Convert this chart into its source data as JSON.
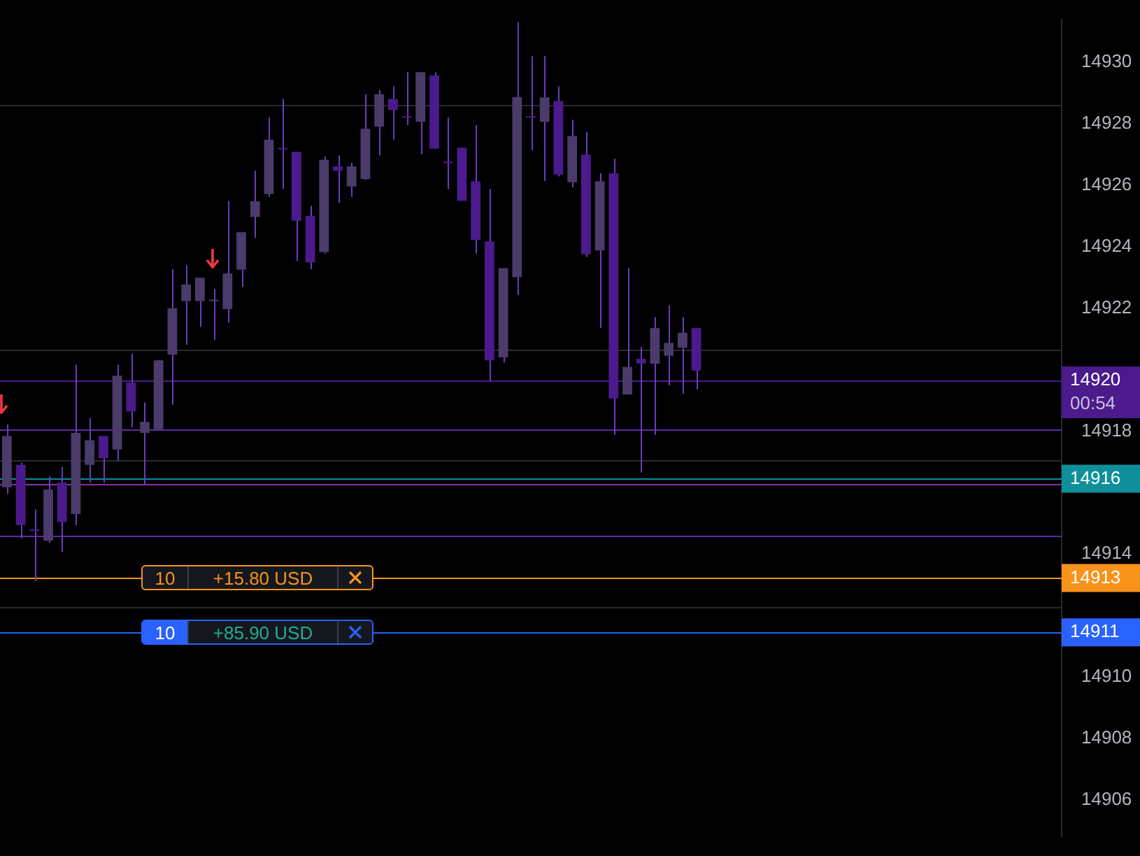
{
  "chart_data": {
    "type": "candlestick",
    "categories": [
      null,
      null,
      null,
      null,
      null,
      null,
      null,
      null,
      null,
      null,
      null,
      null,
      null,
      null,
      null,
      null,
      null,
      null,
      null,
      null,
      null,
      null,
      null,
      null,
      null,
      null,
      null,
      null,
      null,
      null,
      null,
      null,
      null,
      null,
      null,
      null,
      null,
      null,
      null,
      null,
      null,
      null,
      null,
      null,
      null,
      null,
      null,
      null,
      null,
      null,
      null,
      null,
      null,
      null,
      null,
      null,
      null,
      null,
      null,
      null,
      null,
      null,
      null,
      null,
      null,
      null,
      null,
      null,
      null,
      null,
      null,
      null,
      null,
      null,
      null,
      null,
      null
    ],
    "ohlc": [
      [
        14916.17,
        14918.22,
        14915.96,
        14917.84
      ],
      [
        14916.9,
        14916.97,
        14914.51,
        14914.94
      ],
      [
        14914.8,
        14915.45,
        14913.13,
        14914.75
      ],
      [
        14914.43,
        14916.53,
        14914.36,
        14916.1
      ],
      [
        14916.32,
        14916.83,
        14914.07,
        14915.04
      ],
      [
        14915.3,
        14920.16,
        14914.94,
        14917.94
      ],
      [
        14916.9,
        14918.42,
        14916.32,
        14917.7
      ],
      [
        14917.84,
        14917.84,
        14916.32,
        14917.12
      ],
      [
        14917.4,
        14920.16,
        14917.04,
        14919.8
      ],
      [
        14919.58,
        14920.52,
        14918.13,
        14918.64
      ],
      [
        14917.94,
        14918.93,
        14916.25,
        14918.3
      ],
      [
        14918.06,
        14920.3,
        14918.06,
        14920.3
      ],
      [
        14920.49,
        14923.27,
        14918.86,
        14922.0
      ],
      [
        14922.23,
        14923.39,
        14920.81,
        14922.77
      ],
      [
        14922.23,
        14922.99,
        14921.39,
        14922.99
      ],
      [
        14922.23,
        14922.62,
        14920.96,
        14922.25
      ],
      [
        14921.97,
        14925.48,
        14921.53,
        14923.13
      ],
      [
        14923.25,
        14924.47,
        14922.7,
        14924.47
      ],
      [
        14924.97,
        14926.47,
        14924.29,
        14925.48
      ],
      [
        14925.71,
        14928.2,
        14925.62,
        14927.48
      ],
      [
        14927.19,
        14928.81,
        14925.88,
        14927.17
      ],
      [
        14927.09,
        14927.09,
        14923.53,
        14924.84
      ],
      [
        14925.0,
        14925.33,
        14923.27,
        14923.49
      ],
      [
        14923.83,
        14926.93,
        14923.78,
        14926.83
      ],
      [
        14926.61,
        14926.97,
        14925.42,
        14926.47
      ],
      [
        14925.96,
        14926.73,
        14925.62,
        14926.61
      ],
      [
        14926.2,
        14928.96,
        14926.17,
        14927.84
      ],
      [
        14927.91,
        14929.1,
        14926.97,
        14928.96
      ],
      [
        14928.81,
        14929.22,
        14927.48,
        14928.45
      ],
      [
        14928.21,
        14929.68,
        14927.96,
        14928.2
      ],
      [
        14928.06,
        14929.68,
        14927.01,
        14929.68
      ],
      [
        14929.57,
        14929.68,
        14927.19,
        14927.19
      ],
      [
        14926.73,
        14928.2,
        14925.88,
        14926.72
      ],
      [
        14927.22,
        14927.22,
        14925.49,
        14925.49
      ],
      [
        14926.13,
        14927.96,
        14923.78,
        14924.22
      ],
      [
        14924.17,
        14925.88,
        14919.62,
        14920.3
      ],
      [
        14920.4,
        14923.3,
        14920.23,
        14923.3
      ],
      [
        14923.01,
        14931.3,
        14922.43,
        14928.87
      ],
      [
        14928.21,
        14930.2,
        14927.14,
        14928.2
      ],
      [
        14928.06,
        14930.2,
        14926.14,
        14928.86
      ],
      [
        14928.74,
        14929.22,
        14926.29,
        14926.35
      ],
      [
        14926.1,
        14928.13,
        14925.93,
        14927.6
      ],
      [
        14927.0,
        14927.74,
        14923.67,
        14923.75
      ],
      [
        14923.88,
        14926.39,
        14921.36,
        14926.13
      ],
      [
        14926.39,
        14926.87,
        14917.88,
        14919.06
      ],
      [
        14919.19,
        14923.3,
        14919.19,
        14920.09
      ],
      [
        14920.35,
        14920.74,
        14916.65,
        14920.2
      ],
      [
        14920.19,
        14921.71,
        14917.88,
        14921.35
      ],
      [
        14920.45,
        14922.09,
        14919.48,
        14920.87
      ],
      [
        14920.71,
        14921.71,
        14919.22,
        14921.2
      ],
      [
        14921.35,
        14921.35,
        14919.36,
        14919.97
      ],
      null,
      null,
      null,
      null,
      null,
      null,
      null,
      null,
      null,
      null,
      null,
      null,
      null,
      null,
      null,
      null,
      null,
      null,
      null,
      null,
      null,
      null,
      null,
      null,
      null,
      null
    ],
    "colors": [
      "#4a3b6b",
      "#4b1a8c",
      "#4b1a8c",
      "#4a3b6b",
      "#4b1a8c",
      "#4a3b6b",
      "#4a3b6b",
      "#4b1a8c",
      "#4a3b6b",
      "#4b1a8c",
      "#4a3b6b",
      "#4a3b6b",
      "#4a3b6b",
      "#4a3b6b",
      "#4a3b6b",
      "#4a3b6b",
      "#4a3b6b",
      "#4a3b6b",
      "#4a3b6b",
      "#4a3b6b",
      "#4b1a8c",
      "#4b1a8c",
      "#4b1a8c",
      "#4a3b6b",
      "#4b1a8c",
      "#4a3b6b",
      "#4a3b6b",
      "#4a3b6b",
      "#4b1a8c",
      "#4b1a8c",
      "#4a3b6b",
      "#4b1a8c",
      "#4b1a8c",
      "#4b1a8c",
      "#4b1a8c",
      "#4b1a8c",
      "#4a3b6b",
      "#4a3b6b",
      "#4b1a8c",
      "#4a3b6b",
      "#4b1a8c",
      "#4a3b6b",
      "#4b1a8c",
      "#4a3b6b",
      "#4b1a8c",
      "#4a3b6b",
      "#4b1a8c",
      "#4a3b6b",
      "#4a3b6b",
      "#4a3b6b",
      "#4b1a8c",
      null,
      null,
      null,
      null,
      null,
      null,
      null,
      null,
      null,
      null,
      null,
      null,
      null,
      null,
      null,
      null,
      null,
      null,
      null,
      null,
      null,
      null,
      null,
      null,
      null,
      null
    ],
    "ylim": [
      14904.8,
      14931.4
    ],
    "yticks": [
      14906,
      14908,
      14910,
      14914,
      14918,
      14922,
      14924,
      14926,
      14928,
      14930
    ],
    "tick_labels": "y",
    "grid": false,
    "legend": false,
    "ref_lines": [
      {
        "axis": "y",
        "value": 14919.65,
        "label": "14920",
        "color": "#4b1a8c"
      },
      {
        "axis": "y",
        "value": 14928.6,
        "label": null,
        "color": "#2a2a2e"
      },
      {
        "axis": "y",
        "value": 14920.65,
        "label": null,
        "color": "#2a2a2e"
      },
      {
        "axis": "y",
        "value": 14917.04,
        "label": null,
        "color": "#2a2a2e"
      },
      {
        "axis": "y",
        "value": 14912.26,
        "label": null,
        "color": "#2a2a2e"
      },
      {
        "axis": "y",
        "value": 14918.04,
        "label": null,
        "color": "#5b2ca0"
      },
      {
        "axis": "y",
        "value": 14916.3,
        "label": null,
        "color": "#8a2aa8"
      },
      {
        "axis": "y",
        "value": 14914.61,
        "label": null,
        "color": "#5b2ca0"
      },
      {
        "axis": "y",
        "value": 14916.45,
        "label": "14916",
        "color": "#0f8f9a"
      },
      {
        "axis": "y",
        "value": 14913.22,
        "label": "14913",
        "color": "#f7931a"
      },
      {
        "axis": "y",
        "value": 14911.45,
        "label": "14911",
        "color": "#2962ff"
      }
    ],
    "annotations": [
      "00:54",
      {
        "text": "10",
        "y": 14913.22
      },
      {
        "text": "+15.80 USD",
        "y": 14913.22
      },
      {
        "text": "10",
        "y": 14911.45
      },
      {
        "text": "+85.90 USD",
        "y": 14911.45
      }
    ]
  }
}
